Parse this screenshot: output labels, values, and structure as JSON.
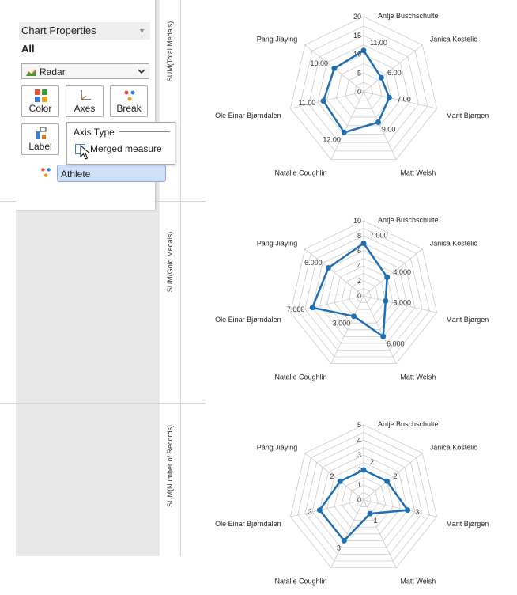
{
  "panel": {
    "title": "Chart Properties",
    "all_label": "All",
    "chart_type": "Radar",
    "buttons": {
      "color": "Color",
      "axes": "Axes",
      "break": "Break",
      "label": "Label"
    },
    "axis_type_title": "Axis Type",
    "merged_measure_label": "Merged measure",
    "merged_measure_checked": false,
    "break_field": "Athlete"
  },
  "colors": {
    "series": "#1f6fb2",
    "grid": "#cccccc",
    "pill": "#cfe0f7"
  },
  "chart_data": [
    {
      "type": "radar",
      "ylabel": "SUM(Total Medals)",
      "categories": [
        "Antje Buschschulte",
        "Janica Kostelic",
        "Marit Bjørgen",
        "Matt Welsh",
        "Natalie Coughlin",
        "Ole Einar Bjørndalen",
        "Pang Jiaying"
      ],
      "values": [
        11,
        6,
        7,
        9,
        12,
        11,
        10
      ],
      "value_labels": [
        "11.00",
        "6.00",
        "7.00",
        "9.00",
        "12.00",
        "11.00",
        "10.00"
      ],
      "ticks": [
        "0",
        "5",
        "10",
        "15",
        "20"
      ],
      "rmax": 20,
      "rings": 8
    },
    {
      "type": "radar",
      "ylabel": "SUM(Gold Medals)",
      "categories": [
        "Antje Buschschulte",
        "Janica Kostelic",
        "Marit Bjørgen",
        "Matt Welsh",
        "Natalie Coughlin",
        "Ole Einar Bjørndalen",
        "Pang Jiaying"
      ],
      "values": [
        7,
        4,
        3,
        6,
        3,
        7,
        6
      ],
      "value_labels": [
        "7.000",
        "4.000",
        "3.000",
        "6.000",
        "3.000",
        "7.000",
        "6.000"
      ],
      "ticks": [
        "0",
        "2",
        "4",
        "6",
        "8",
        "10"
      ],
      "rmax": 10,
      "rings": 10
    },
    {
      "type": "radar",
      "ylabel": "SUM(Number of Records)",
      "categories": [
        "Antje Buschschulte",
        "Janica Kostelic",
        "Marit Bjørgen",
        "Matt Welsh",
        "Natalie Coughlin",
        "Ole Einar Bjørndalen",
        "Pang Jiaying"
      ],
      "values": [
        2,
        2,
        3,
        1,
        3,
        3,
        2
      ],
      "value_labels": [
        "2",
        "2",
        "3",
        "1",
        "3",
        "3",
        "2"
      ],
      "ticks": [
        "0",
        "1",
        "2",
        "3",
        "4",
        "5"
      ],
      "rmax": 5,
      "rings": 10
    }
  ]
}
